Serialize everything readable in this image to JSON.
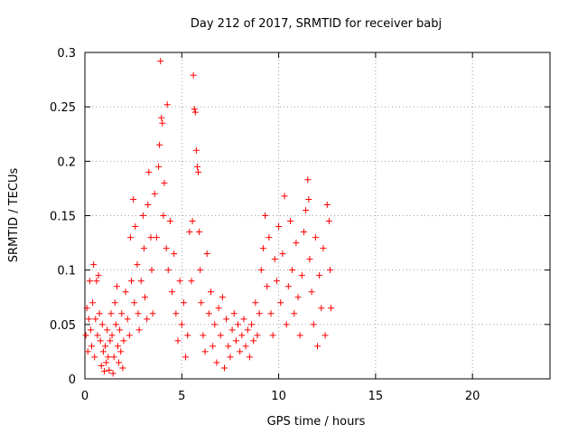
{
  "chart_data": {
    "type": "scatter",
    "title": "Day 212 of 2017, SRMTID for receiver babj",
    "xlabel": "GPS time / hours",
    "ylabel": "SRMTID / TECUs",
    "xlim": [
      0,
      24
    ],
    "ylim": [
      0,
      0.3
    ],
    "xticks": [
      0,
      5,
      10,
      15,
      20
    ],
    "xtick_labels": [
      "0",
      "5",
      "10",
      "15",
      "20"
    ],
    "yticks": [
      0,
      0.05,
      0.1,
      0.15,
      0.2,
      0.25,
      0.3
    ],
    "ytick_labels": [
      "0",
      "0.05",
      "0.1",
      "0.15",
      "0.2",
      "0.25",
      "0.3"
    ],
    "grid": true,
    "marker": "plus",
    "color": "#ff0000",
    "series": [
      {
        "name": "SRMTID",
        "points": [
          [
            0.05,
            0.04
          ],
          [
            0.1,
            0.065
          ],
          [
            0.15,
            0.025
          ],
          [
            0.2,
            0.055
          ],
          [
            0.25,
            0.09
          ],
          [
            0.3,
            0.045
          ],
          [
            0.35,
            0.03
          ],
          [
            0.4,
            0.07
          ],
          [
            0.45,
            0.105
          ],
          [
            0.5,
            0.02
          ],
          [
            0.55,
            0.055
          ],
          [
            0.6,
            0.09
          ],
          [
            0.65,
            0.04
          ],
          [
            0.7,
            0.095
          ],
          [
            0.75,
            0.06
          ],
          [
            0.8,
            0.035
          ],
          [
            0.85,
            0.012
          ],
          [
            0.9,
            0.05
          ],
          [
            0.95,
            0.025
          ],
          [
            1.0,
            0.007
          ],
          [
            1.05,
            0.03
          ],
          [
            1.1,
            0.015
          ],
          [
            1.15,
            0.045
          ],
          [
            1.2,
            0.02
          ],
          [
            1.25,
            0.008
          ],
          [
            1.3,
            0.035
          ],
          [
            1.35,
            0.06
          ],
          [
            1.4,
            0.04
          ],
          [
            1.45,
            0.005
          ],
          [
            1.5,
            0.02
          ],
          [
            1.55,
            0.07
          ],
          [
            1.6,
            0.05
          ],
          [
            1.65,
            0.085
          ],
          [
            1.7,
            0.03
          ],
          [
            1.75,
            0.015
          ],
          [
            1.8,
            0.045
          ],
          [
            1.85,
            0.025
          ],
          [
            1.9,
            0.06
          ],
          [
            1.95,
            0.01
          ],
          [
            2.0,
            0.035
          ],
          [
            2.1,
            0.08
          ],
          [
            2.2,
            0.055
          ],
          [
            2.3,
            0.04
          ],
          [
            2.35,
            0.13
          ],
          [
            2.4,
            0.09
          ],
          [
            2.5,
            0.165
          ],
          [
            2.55,
            0.07
          ],
          [
            2.6,
            0.14
          ],
          [
            2.7,
            0.105
          ],
          [
            2.75,
            0.06
          ],
          [
            2.8,
            0.045
          ],
          [
            2.9,
            0.09
          ],
          [
            3.0,
            0.15
          ],
          [
            3.05,
            0.12
          ],
          [
            3.1,
            0.075
          ],
          [
            3.2,
            0.055
          ],
          [
            3.25,
            0.16
          ],
          [
            3.3,
            0.19
          ],
          [
            3.4,
            0.13
          ],
          [
            3.45,
            0.1
          ],
          [
            3.5,
            0.06
          ],
          [
            3.6,
            0.17
          ],
          [
            3.7,
            0.13
          ],
          [
            3.8,
            0.195
          ],
          [
            3.85,
            0.215
          ],
          [
            3.9,
            0.292
          ],
          [
            3.95,
            0.24
          ],
          [
            4.0,
            0.235
          ],
          [
            4.05,
            0.15
          ],
          [
            4.1,
            0.18
          ],
          [
            4.2,
            0.12
          ],
          [
            4.25,
            0.252
          ],
          [
            4.3,
            0.1
          ],
          [
            4.4,
            0.145
          ],
          [
            4.5,
            0.08
          ],
          [
            4.6,
            0.115
          ],
          [
            4.7,
            0.06
          ],
          [
            4.8,
            0.035
          ],
          [
            4.9,
            0.09
          ],
          [
            5.0,
            0.05
          ],
          [
            5.1,
            0.07
          ],
          [
            5.2,
            0.02
          ],
          [
            5.3,
            0.04
          ],
          [
            5.4,
            0.135
          ],
          [
            5.5,
            0.09
          ],
          [
            5.55,
            0.145
          ],
          [
            5.6,
            0.279
          ],
          [
            5.65,
            0.248
          ],
          [
            5.7,
            0.245
          ],
          [
            5.75,
            0.21
          ],
          [
            5.8,
            0.195
          ],
          [
            5.85,
            0.19
          ],
          [
            5.9,
            0.135
          ],
          [
            5.95,
            0.1
          ],
          [
            6.0,
            0.07
          ],
          [
            6.1,
            0.04
          ],
          [
            6.2,
            0.025
          ],
          [
            6.3,
            0.115
          ],
          [
            6.4,
            0.06
          ],
          [
            6.5,
            0.08
          ],
          [
            6.6,
            0.03
          ],
          [
            6.7,
            0.05
          ],
          [
            6.8,
            0.015
          ],
          [
            6.9,
            0.065
          ],
          [
            7.0,
            0.04
          ],
          [
            7.1,
            0.075
          ],
          [
            7.2,
            0.01
          ],
          [
            7.3,
            0.055
          ],
          [
            7.4,
            0.03
          ],
          [
            7.5,
            0.02
          ],
          [
            7.6,
            0.045
          ],
          [
            7.7,
            0.06
          ],
          [
            7.8,
            0.035
          ],
          [
            7.9,
            0.05
          ],
          [
            8.0,
            0.025
          ],
          [
            8.1,
            0.04
          ],
          [
            8.2,
            0.055
          ],
          [
            8.3,
            0.03
          ],
          [
            8.4,
            0.045
          ],
          [
            8.5,
            0.02
          ],
          [
            8.6,
            0.05
          ],
          [
            8.7,
            0.035
          ],
          [
            8.8,
            0.07
          ],
          [
            8.9,
            0.04
          ],
          [
            9.0,
            0.06
          ],
          [
            9.1,
            0.1
          ],
          [
            9.2,
            0.12
          ],
          [
            9.3,
            0.15
          ],
          [
            9.4,
            0.085
          ],
          [
            9.5,
            0.13
          ],
          [
            9.6,
            0.06
          ],
          [
            9.7,
            0.04
          ],
          [
            9.8,
            0.11
          ],
          [
            9.9,
            0.09
          ],
          [
            10.0,
            0.14
          ],
          [
            10.1,
            0.07
          ],
          [
            10.2,
            0.115
          ],
          [
            10.3,
            0.168
          ],
          [
            10.4,
            0.05
          ],
          [
            10.5,
            0.085
          ],
          [
            10.6,
            0.145
          ],
          [
            10.7,
            0.1
          ],
          [
            10.8,
            0.06
          ],
          [
            10.9,
            0.125
          ],
          [
            11.0,
            0.075
          ],
          [
            11.1,
            0.04
          ],
          [
            11.2,
            0.095
          ],
          [
            11.3,
            0.135
          ],
          [
            11.4,
            0.155
          ],
          [
            11.5,
            0.183
          ],
          [
            11.55,
            0.165
          ],
          [
            11.6,
            0.11
          ],
          [
            11.7,
            0.08
          ],
          [
            11.8,
            0.05
          ],
          [
            11.9,
            0.13
          ],
          [
            12.0,
            0.03
          ],
          [
            12.1,
            0.095
          ],
          [
            12.2,
            0.065
          ],
          [
            12.3,
            0.12
          ],
          [
            12.4,
            0.04
          ],
          [
            12.5,
            0.16
          ],
          [
            12.6,
            0.145
          ],
          [
            12.65,
            0.1
          ],
          [
            12.7,
            0.065
          ]
        ]
      }
    ]
  }
}
